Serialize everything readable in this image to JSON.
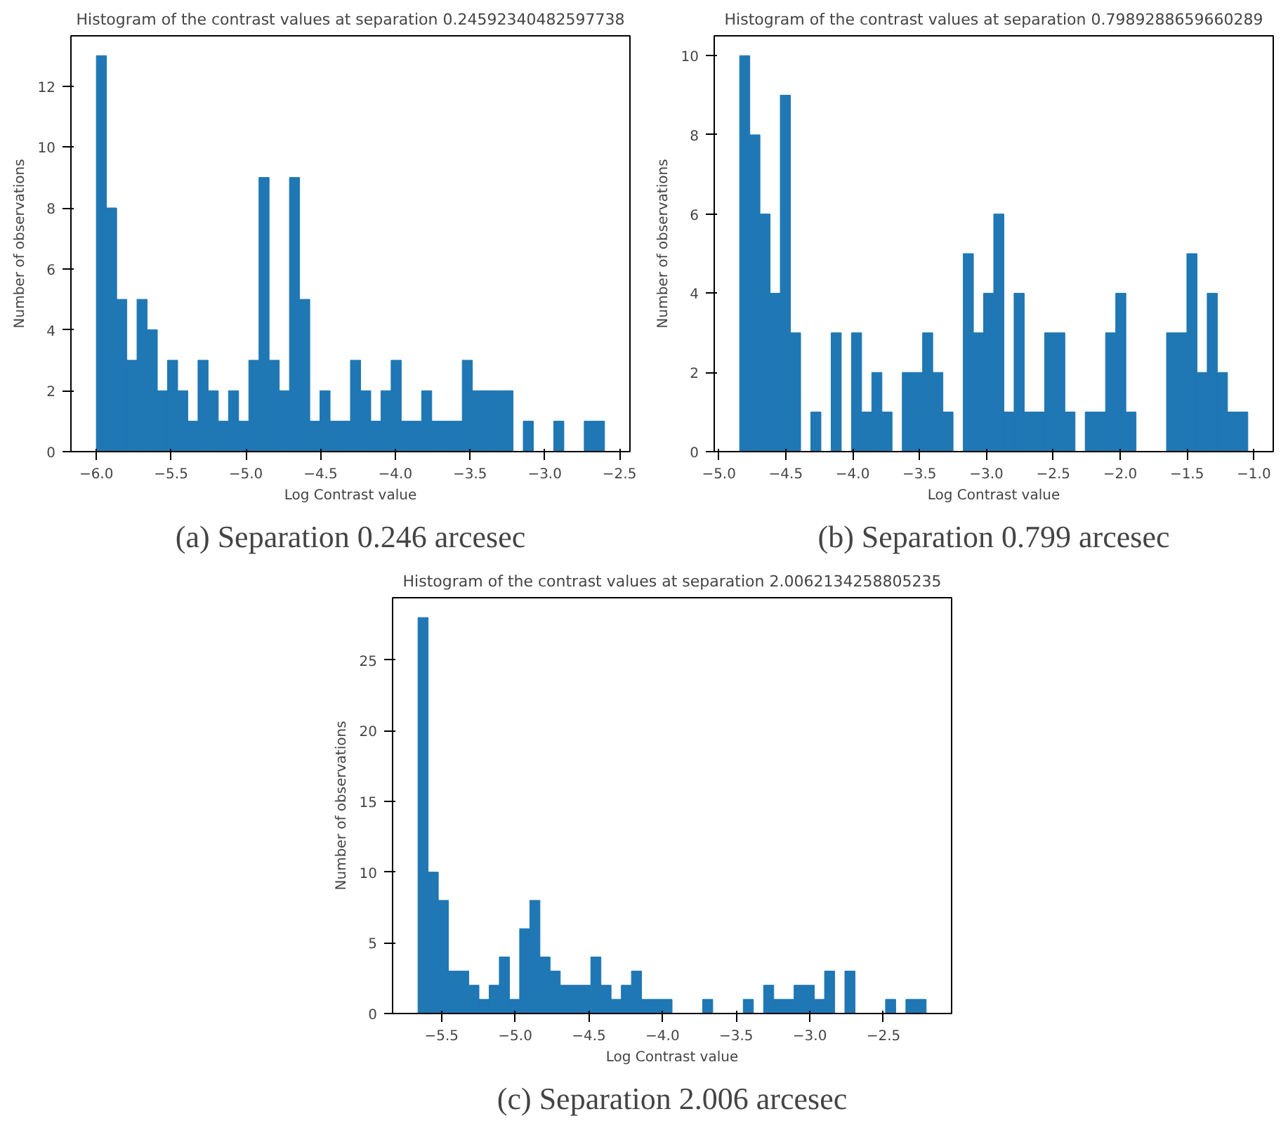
{
  "chart_data": [
    {
      "type": "histogram",
      "title": "Histogram of the contrast values at separation 0.24592340482597738",
      "xlabel": "Log Contrast value",
      "ylabel": "Number of observations",
      "annotations": [
        "(a) Separation 0.246 arcesec"
      ],
      "color": "#1f77b4",
      "grid": false,
      "bins": [
        -6.0,
        -5.932,
        -5.864,
        -5.796,
        -5.728,
        -5.66,
        -5.592,
        -5.524,
        -5.456,
        -5.388,
        -5.32,
        -5.252,
        -5.184,
        -5.116,
        -5.048,
        -4.98,
        -4.912,
        -4.844,
        -4.776,
        -4.708,
        -4.64,
        -4.572,
        -4.504,
        -4.436,
        -4.368,
        -4.3,
        -4.232,
        -4.164,
        -4.096,
        -4.028,
        -3.96,
        -3.892,
        -3.824,
        -3.756,
        -3.688,
        -3.62,
        -3.552,
        -3.484,
        -3.416,
        -3.348,
        -3.28,
        -3.212,
        -3.144,
        -3.076,
        -3.008,
        -2.94,
        -2.872,
        -2.804,
        -2.736,
        -2.668,
        -2.6
      ],
      "values": [
        13,
        8,
        5,
        3,
        5,
        4,
        2,
        3,
        2,
        1,
        3,
        2,
        1,
        2,
        1,
        3,
        9,
        3,
        2,
        9,
        5,
        1,
        2,
        1,
        1,
        3,
        2,
        1,
        2,
        3,
        1,
        1,
        2,
        1,
        1,
        1,
        3,
        2,
        2,
        2,
        2,
        0,
        1,
        0,
        0,
        1,
        0,
        0,
        1,
        1
      ],
      "xlim": [
        -6.17,
        -2.43
      ],
      "ylim": [
        0,
        13.65
      ],
      "xticks": [
        {
          "value": -6.0,
          "label": "−6.0"
        },
        {
          "value": -5.5,
          "label": "−5.5"
        },
        {
          "value": -5.0,
          "label": "−5.0"
        },
        {
          "value": -4.5,
          "label": "−4.5"
        },
        {
          "value": -4.0,
          "label": "−4.0"
        },
        {
          "value": -3.5,
          "label": "−3.5"
        },
        {
          "value": -3.0,
          "label": "−3.0"
        },
        {
          "value": -2.5,
          "label": "−2.5"
        }
      ],
      "yticks": [
        0,
        2,
        4,
        6,
        8,
        10,
        12
      ]
    },
    {
      "type": "histogram",
      "title": "Histogram of the contrast values at separation 0.7989288659660289",
      "xlabel": "Log Contrast value",
      "ylabel": "Number of observations",
      "annotations": [
        "(b) Separation 0.799 arcesec"
      ],
      "color": "#1f77b4",
      "grid": false,
      "bins": [
        -4.845,
        -4.769,
        -4.693,
        -4.617,
        -4.541,
        -4.465,
        -4.389,
        -4.313,
        -4.237,
        -4.161,
        -4.085,
        -4.009,
        -3.933,
        -3.857,
        -3.781,
        -3.705,
        -3.629,
        -3.553,
        -3.477,
        -3.401,
        -3.325,
        -3.249,
        -3.173,
        -3.097,
        -3.021,
        -2.945,
        -2.869,
        -2.793,
        -2.717,
        -2.641,
        -2.565,
        -2.489,
        -2.413,
        -2.337,
        -2.261,
        -2.185,
        -2.109,
        -2.033,
        -1.957,
        -1.881,
        -1.805,
        -1.729,
        -1.653,
        -1.577,
        -1.501,
        -1.425,
        -1.349,
        -1.273,
        -1.197,
        -1.121,
        -1.045
      ],
      "values": [
        10,
        8,
        6,
        4,
        9,
        3,
        0,
        1,
        0,
        3,
        0,
        3,
        1,
        2,
        1,
        0,
        2,
        2,
        3,
        2,
        1,
        0,
        5,
        3,
        4,
        6,
        1,
        4,
        1,
        1,
        3,
        3,
        1,
        0,
        1,
        1,
        3,
        4,
        1,
        0,
        0,
        0,
        3,
        3,
        5,
        2,
        4,
        2,
        1,
        1
      ],
      "xlim": [
        -5.035,
        -0.855
      ],
      "ylim": [
        0,
        10.5
      ],
      "xticks": [
        {
          "value": -5.0,
          "label": "−5.0"
        },
        {
          "value": -4.5,
          "label": "−4.5"
        },
        {
          "value": -4.0,
          "label": "−4.0"
        },
        {
          "value": -3.5,
          "label": "−3.5"
        },
        {
          "value": -3.0,
          "label": "−3.0"
        },
        {
          "value": -2.5,
          "label": "−2.5"
        },
        {
          "value": -2.0,
          "label": "−2.0"
        },
        {
          "value": -1.5,
          "label": "−1.5"
        },
        {
          "value": -1.0,
          "label": "−1.0"
        }
      ],
      "yticks": [
        0,
        2,
        4,
        6,
        8,
        10
      ]
    },
    {
      "type": "histogram",
      "title": "Histogram of the contrast values at separation 2.0062134258805235",
      "xlabel": "Log Contrast value",
      "ylabel": "Number of observations",
      "annotations": [
        "(c) Separation 2.006 arcesec"
      ],
      "color": "#1f77b4",
      "grid": false,
      "bins": [
        -5.66,
        -5.591,
        -5.522,
        -5.453,
        -5.384,
        -5.315,
        -5.246,
        -5.177,
        -5.108,
        -5.039,
        -4.97,
        -4.901,
        -4.832,
        -4.763,
        -4.694,
        -4.625,
        -4.556,
        -4.487,
        -4.418,
        -4.349,
        -4.28,
        -4.211,
        -4.142,
        -4.073,
        -4.004,
        -3.935,
        -3.866,
        -3.797,
        -3.728,
        -3.659,
        -3.59,
        -3.521,
        -3.452,
        -3.383,
        -3.314,
        -3.245,
        -3.176,
        -3.107,
        -3.038,
        -2.969,
        -2.9,
        -2.831,
        -2.762,
        -2.693,
        -2.624,
        -2.555,
        -2.486,
        -2.417,
        -2.348,
        -2.279,
        -2.21
      ],
      "values": [
        28,
        10,
        8,
        3,
        3,
        2,
        1,
        2,
        4,
        1,
        6,
        8,
        4,
        3,
        2,
        2,
        2,
        4,
        2,
        1,
        2,
        3,
        1,
        1,
        1,
        0,
        0,
        0,
        1,
        0,
        0,
        0,
        1,
        0,
        2,
        1,
        1,
        2,
        2,
        1,
        3,
        0,
        3,
        0,
        0,
        0,
        1,
        0,
        1,
        1
      ],
      "xlim": [
        -5.8325,
        -2.0375
      ],
      "ylim": [
        0,
        29.4
      ],
      "xticks": [
        {
          "value": -5.5,
          "label": "−5.5"
        },
        {
          "value": -5.0,
          "label": "−5.0"
        },
        {
          "value": -4.5,
          "label": "−4.5"
        },
        {
          "value": -4.0,
          "label": "−4.0"
        },
        {
          "value": -3.5,
          "label": "−3.5"
        },
        {
          "value": -3.0,
          "label": "−3.0"
        },
        {
          "value": -2.5,
          "label": "−2.5"
        }
      ],
      "yticks": [
        0,
        5,
        10,
        15,
        20,
        25
      ]
    }
  ]
}
